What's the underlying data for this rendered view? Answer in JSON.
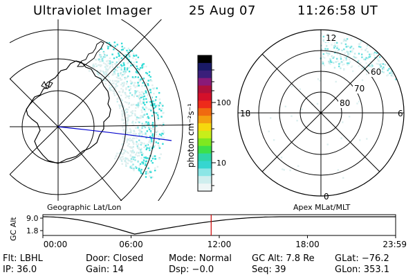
{
  "header": {
    "instrument": "Ultraviolet Imager",
    "date": "25 Aug 07",
    "time": "11:26:58 UT"
  },
  "colorbar": {
    "unit_label": "photon cm⁻²s⁻¹",
    "ticks": [
      "100",
      "10"
    ],
    "colors": [
      "#000000",
      "#1a1a66",
      "#3a1f7a",
      "#8a1a78",
      "#b0103a",
      "#d4102a",
      "#ee2a1a",
      "#f06a10",
      "#f4a010",
      "#f6d80e",
      "#c8ee1a",
      "#7ee820",
      "#3ce04a",
      "#2fd6a6",
      "#36d6d0",
      "#8ce6e6",
      "#cfeeee",
      "#eef6f6"
    ]
  },
  "geo_panel": {
    "caption": "Geographic Lat/Lon"
  },
  "mag_panel": {
    "caption": "Apex MLat/MLT",
    "mlt_labels": {
      "top": "12",
      "left": "18",
      "right": "6",
      "bottom": "0"
    },
    "lat_labels": [
      "60",
      "70",
      "80"
    ]
  },
  "timeline": {
    "axis_title": "GC Alt",
    "y_ticks": [
      "9.0",
      "1.8"
    ],
    "x_ticks": [
      "00:00",
      "06:00",
      "12:00",
      "18:00",
      "23:59"
    ],
    "marker_time_fraction": 0.477
  },
  "footer": {
    "row1": [
      "Flt: LBHL",
      "Door: Closed",
      "Mode: Normal",
      "GC Alt: 7.8 Re",
      "GLat: −76.2"
    ],
    "row2": [
      "IP: 36.0",
      "Gain: 14",
      "Dsp:  −0.0",
      "Seq: 39",
      "GLon: 353.1"
    ]
  }
}
